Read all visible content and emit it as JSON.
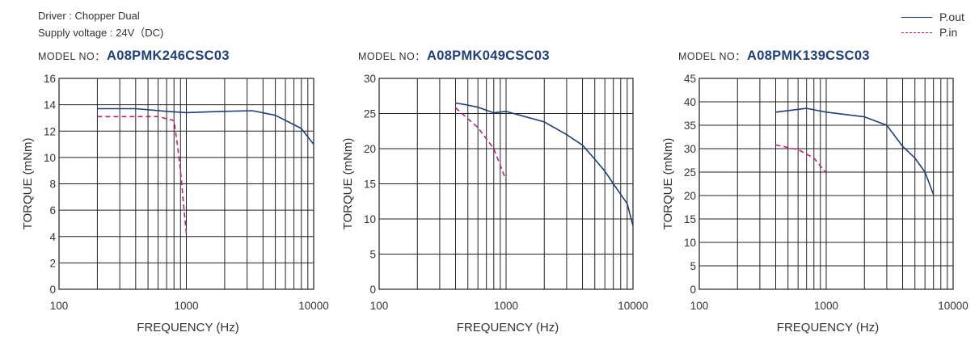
{
  "header": {
    "line1": "Driver : Chopper Dual",
    "line2": "Supply voltage : 24V（DC)"
  },
  "legend": [
    {
      "label": "P.out",
      "color": "#1f3f77",
      "dash": false
    },
    {
      "label": "P.in",
      "color": "#c0206f",
      "dash": true
    }
  ],
  "colors": {
    "pout": "#1f3f77",
    "pin": "#c0206f",
    "model": "#1f3f77"
  },
  "chart_data": [
    {
      "type": "line",
      "model_label": "MODEL NO：",
      "model": "A08PMK246CSC03",
      "xlabel": "FREQUENCY (Hz)",
      "ylabel": "TORQUE (mNm)",
      "xscale": "log",
      "xlim": [
        100,
        10000
      ],
      "ylim": [
        0,
        16
      ],
      "xticks": [
        "100",
        "1000",
        "10000"
      ],
      "yticks": [
        "0",
        "2",
        "4",
        "6",
        "8",
        "10",
        "12",
        "14",
        "16"
      ],
      "grid": true,
      "series": [
        {
          "name": "P.out",
          "x": [
            200,
            400,
            700,
            1000,
            2000,
            3300,
            5000,
            8000,
            10000
          ],
          "y": [
            13.7,
            13.7,
            13.5,
            13.4,
            13.5,
            13.55,
            13.2,
            12.2,
            11.0
          ]
        },
        {
          "name": "P.in",
          "x": [
            200,
            400,
            600,
            800,
            850,
            900,
            950,
            1000
          ],
          "y": [
            13.1,
            13.1,
            13.1,
            12.8,
            11.0,
            9.0,
            6.5,
            4.2
          ]
        }
      ]
    },
    {
      "type": "line",
      "model_label": "MODEL NO：",
      "model": "A08PMK049CSC03",
      "xlabel": "FREQUENCY (Hz)",
      "ylabel": "TORQUE (mNm)",
      "xscale": "log",
      "xlim": [
        100,
        10000
      ],
      "ylim": [
        0,
        30
      ],
      "xticks": [
        "100",
        "1000",
        "10000"
      ],
      "yticks": [
        "0",
        "5",
        "10",
        "15",
        "20",
        "25",
        "30"
      ],
      "grid": true,
      "series": [
        {
          "name": "P.out",
          "x": [
            400,
            500,
            600,
            800,
            1000,
            2000,
            3000,
            4000,
            5000,
            6000,
            7000,
            8000,
            9000,
            10000
          ],
          "y": [
            26.5,
            26.2,
            25.9,
            25.1,
            25.3,
            23.8,
            22.0,
            20.5,
            18.5,
            16.8,
            15.0,
            13.5,
            12.2,
            9.0
          ]
        },
        {
          "name": "P.in",
          "x": [
            400,
            600,
            800,
            1000
          ],
          "y": [
            25.8,
            23.0,
            20.0,
            15.5
          ]
        }
      ]
    },
    {
      "type": "line",
      "model_label": "MODEL NO：",
      "model": "A08PMK139CSC03",
      "xlabel": "FREQUENCY (Hz)",
      "ylabel": "TORQUE (mNm)",
      "xscale": "log",
      "xlim": [
        100,
        10000
      ],
      "ylim": [
        0,
        45
      ],
      "xticks": [
        "100",
        "1000",
        "10000"
      ],
      "yticks": [
        "0",
        "5",
        "10",
        "15",
        "20",
        "25",
        "30",
        "35",
        "40",
        "45"
      ],
      "grid": true,
      "series": [
        {
          "name": "P.out",
          "x": [
            400,
            700,
            1000,
            2000,
            3000,
            4000,
            5000,
            6000,
            7000
          ],
          "y": [
            37.8,
            38.6,
            37.8,
            36.8,
            35.0,
            30.5,
            28.0,
            25.0,
            20.2
          ]
        },
        {
          "name": "P.in",
          "x": [
            400,
            600,
            800,
            1000
          ],
          "y": [
            30.8,
            29.8,
            28.0,
            24.8
          ]
        }
      ]
    }
  ]
}
